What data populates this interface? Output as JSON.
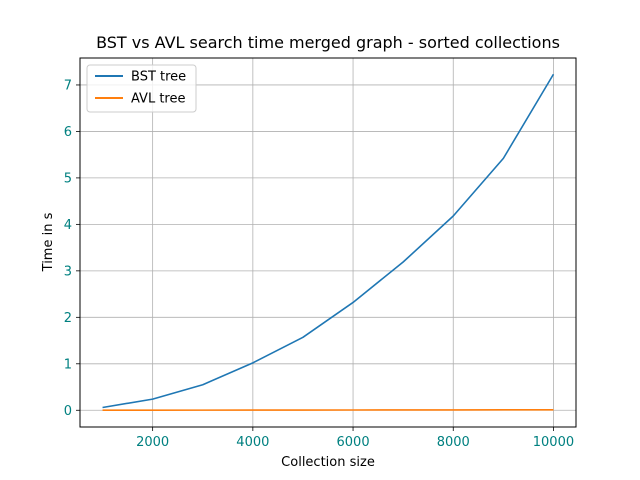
{
  "chart_data": {
    "type": "line",
    "title": "BST vs AVL search time merged graph - sorted collections",
    "xlabel": "Collection size",
    "ylabel": "Time in s",
    "xlim": [
      550,
      10450
    ],
    "ylim": [
      -0.36,
      7.58
    ],
    "xticks": [
      2000,
      4000,
      6000,
      8000,
      10000
    ],
    "yticks": [
      0,
      1,
      2,
      3,
      4,
      5,
      6,
      7
    ],
    "grid": true,
    "legend_position": "top-left",
    "x": [
      1000,
      2000,
      3000,
      4000,
      5000,
      6000,
      7000,
      8000,
      9000,
      10000
    ],
    "series": [
      {
        "name": "BST tree",
        "color": "#1f77b4",
        "values": [
          0.06,
          0.24,
          0.55,
          1.02,
          1.57,
          2.32,
          3.19,
          4.18,
          5.42,
          7.23
        ]
      },
      {
        "name": "AVL tree",
        "color": "#ff7f0e",
        "values": [
          0.001,
          0.002,
          0.003,
          0.004,
          0.005,
          0.006,
          0.007,
          0.008,
          0.009,
          0.01
        ]
      }
    ]
  }
}
